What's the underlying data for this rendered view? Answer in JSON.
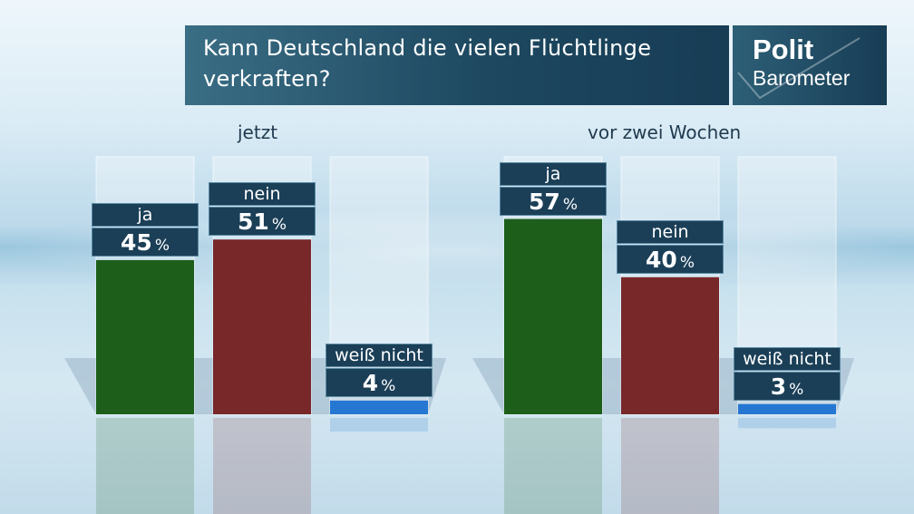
{
  "title": "Kann Deutschland die vielen Flüchtlinge verkraften?",
  "logo": {
    "line1": "Polit",
    "line2": "Barometer"
  },
  "colors": {
    "ja": "#1e5e1b",
    "nein": "#782829",
    "weiss_nicht": "#2577d2",
    "label_bg": "#1b3f57"
  },
  "chart_data": {
    "type": "bar",
    "title": "Kann Deutschland die vielen Flüchtlinge verkraften?",
    "categories": [
      "ja",
      "nein",
      "weiß nicht"
    ],
    "unit": "%",
    "ylim": [
      0,
      60
    ],
    "groups": [
      {
        "name": "jetzt",
        "values": [
          45,
          51,
          4
        ]
      },
      {
        "name": "vor zwei Wochen",
        "values": [
          57,
          40,
          3
        ]
      }
    ]
  }
}
